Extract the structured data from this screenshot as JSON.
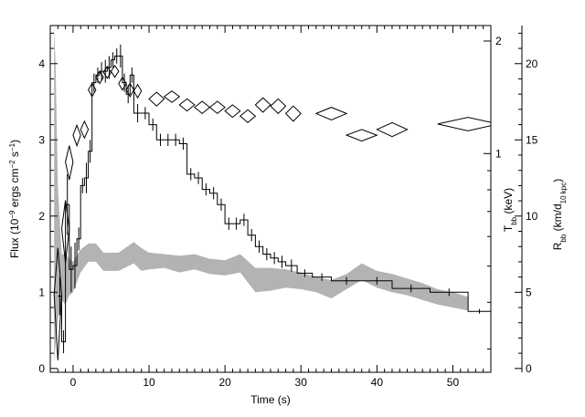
{
  "chart_data": {
    "type": "line",
    "xlabel": "Time (s)",
    "xlim": [
      -3,
      55
    ],
    "xticks": [
      0,
      10,
      20,
      30,
      40,
      50
    ],
    "axes": {
      "flux": {
        "label_parts": [
          "Flux (10",
          "−9",
          " ergs cm",
          "−2",
          " s",
          "−1",
          ")"
        ],
        "lim": [
          -0.05,
          4.5
        ],
        "ticks": [
          0,
          1,
          2,
          3,
          4
        ],
        "side": "left"
      },
      "tbb": {
        "label_parts": [
          "T",
          "bb",
          " (keV)"
        ],
        "scale": "log",
        "lim": [
          0.26,
          2.2
        ],
        "ticks": [
          1,
          2
        ],
        "side": "right-inner"
      },
      "rbb": {
        "label_parts": [
          "R",
          "bb",
          " (km/d",
          "10 kpc",
          ")"
        ],
        "lim": [
          -0.25,
          22.5
        ],
        "ticks": [
          0,
          5,
          10,
          15,
          20
        ],
        "side": "right-outer"
      }
    },
    "series": [
      {
        "type": "step",
        "axis": "flux",
        "color": "#000000",
        "x": [
          -2.0,
          -1.5,
          -1.0,
          -0.5,
          0.0,
          0.5,
          1.0,
          1.5,
          2.0,
          2.5,
          3.0,
          3.5,
          4.0,
          4.5,
          5.0,
          5.5,
          6.0,
          6.5,
          7.0,
          7.5,
          8.0,
          9.0,
          10.0,
          11.0,
          12.0,
          13.0,
          14.0,
          15.0,
          16.0,
          17.0,
          18.0,
          19.0,
          20.0,
          21.0,
          22.0,
          23.0,
          24.0,
          25.0,
          26.0,
          27.0,
          28.0,
          29.5,
          31.5,
          34.0,
          38.0,
          42.0,
          47.0,
          52.0
        ],
        "y": [
          0.95,
          0.35,
          2.15,
          1.3,
          1.35,
          1.7,
          2.4,
          2.5,
          2.85,
          3.75,
          3.85,
          3.9,
          3.9,
          3.95,
          4.05,
          4.1,
          4.1,
          3.75,
          3.6,
          3.85,
          3.35,
          3.35,
          3.2,
          3.0,
          3.0,
          3.0,
          2.95,
          2.55,
          2.5,
          2.35,
          2.3,
          2.15,
          1.9,
          1.9,
          1.95,
          1.75,
          1.6,
          1.5,
          1.45,
          1.4,
          1.35,
          1.25,
          1.2,
          1.15,
          1.15,
          1.05,
          1.0,
          0.75
        ],
        "y_err": [
          0.25,
          0.15,
          0.4,
          0.3,
          0.3,
          0.15,
          0.1,
          0.2,
          0.15,
          0.12,
          0.1,
          0.12,
          0.15,
          0.15,
          0.1,
          0.1,
          0.15,
          0.12,
          0.12,
          0.1,
          0.12,
          0.08,
          0.08,
          0.08,
          0.08,
          0.08,
          0.08,
          0.08,
          0.08,
          0.08,
          0.08,
          0.08,
          0.08,
          0.08,
          0.08,
          0.08,
          0.08,
          0.08,
          0.08,
          0.08,
          0.08,
          0.05,
          0.05,
          0.05,
          0.05,
          0.05,
          0.05,
          0.03
        ],
        "steps_to": 55
      },
      {
        "type": "diamonds",
        "axis": "tbb",
        "color": "#000000",
        "x": [
          -2.0,
          -1.0,
          -0.5,
          0.5,
          1.5,
          2.5,
          3.5,
          4.5,
          5.5,
          6.5,
          7.5,
          8.5,
          11.0,
          13.0,
          15.0,
          17.0,
          19.0,
          21.0,
          23.0,
          25.0,
          27.0,
          29.0,
          34.0,
          38.0,
          42.0,
          52.0
        ],
        "y": [
          0.42,
          0.63,
          0.95,
          1.12,
          1.16,
          1.48,
          1.6,
          1.65,
          1.66,
          1.54,
          1.48,
          1.47,
          1.4,
          1.42,
          1.35,
          1.33,
          1.33,
          1.3,
          1.26,
          1.35,
          1.34,
          1.28,
          1.28,
          1.12,
          1.16,
          1.2
        ],
        "x_err": [
          0.5,
          0.5,
          0.5,
          0.5,
          0.5,
          0.5,
          0.5,
          0.5,
          0.5,
          0.5,
          0.5,
          0.5,
          1.0,
          1.0,
          1.0,
          1.0,
          1.0,
          1.0,
          1.0,
          1.0,
          1.0,
          1.0,
          2.0,
          2.0,
          2.0,
          4.0
        ],
        "y_err": [
          0.14,
          0.12,
          0.1,
          0.07,
          0.06,
          0.06,
          0.06,
          0.06,
          0.06,
          0.06,
          0.06,
          0.06,
          0.06,
          0.05,
          0.05,
          0.05,
          0.05,
          0.05,
          0.05,
          0.06,
          0.06,
          0.06,
          0.05,
          0.04,
          0.05,
          0.05
        ]
      },
      {
        "type": "band",
        "axis": "rbb",
        "color": "#b3b3b3",
        "x": [
          -2.5,
          -2.3,
          -2.0,
          -1.5,
          -1.0,
          -0.5,
          0.0,
          1.0,
          2.0,
          3.0,
          4.0,
          6.0,
          8.0,
          9.0,
          10.0,
          12.0,
          14.0,
          16.0,
          18.0,
          20.0,
          22.0,
          24.0,
          26.0,
          28.0,
          30.0,
          32.0,
          34.0,
          36.0,
          38.0,
          40.0,
          42.0,
          44.0,
          46.0,
          48.0,
          50.0,
          52.0
        ],
        "lo": [
          0.5,
          1.5,
          3.2,
          4.5,
          4.2,
          4.8,
          5.0,
          6.3,
          7.0,
          7.0,
          6.4,
          6.4,
          6.9,
          6.4,
          6.5,
          6.6,
          6.3,
          6.5,
          6.2,
          6.1,
          6.3,
          5.0,
          5.1,
          5.3,
          5.2,
          5.0,
          4.6,
          5.2,
          5.8,
          5.3,
          5.0,
          4.8,
          4.5,
          4.2,
          4.0,
          3.8
        ],
        "hi": [
          22.5,
          20.0,
          12.0,
          7.5,
          7.5,
          7.2,
          7.0,
          7.8,
          8.2,
          8.2,
          7.6,
          7.6,
          8.3,
          7.9,
          7.6,
          7.5,
          7.4,
          7.5,
          7.2,
          7.1,
          7.5,
          6.6,
          6.6,
          6.5,
          6.3,
          6.0,
          5.8,
          6.2,
          6.9,
          6.4,
          6.2,
          5.9,
          5.6,
          5.2,
          5.0,
          4.7
        ]
      }
    ]
  }
}
